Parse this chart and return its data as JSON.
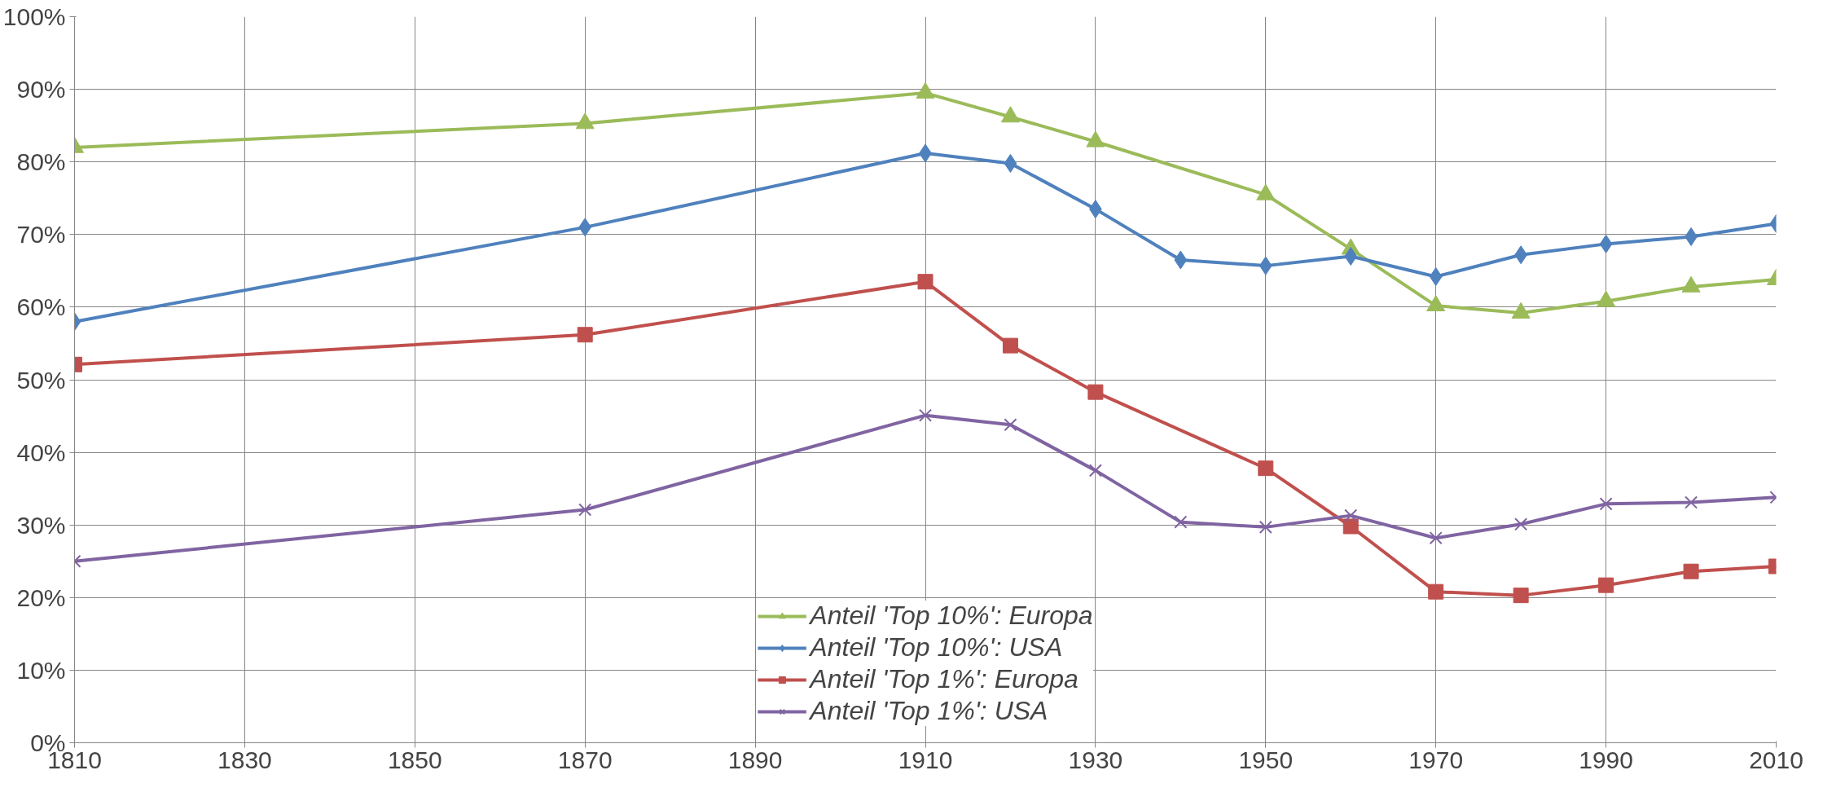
{
  "chart_data": {
    "type": "line",
    "grid": true,
    "legend": "bottom",
    "xlim": [
      1810,
      2010
    ],
    "xticks": [
      1810,
      1830,
      1850,
      1870,
      1890,
      1910,
      1930,
      1950,
      1970,
      1990,
      2010
    ],
    "ylim": [
      0,
      100
    ],
    "yticks": [
      {
        "value": 0,
        "label": "0%"
      },
      {
        "value": 10,
        "label": "10%"
      },
      {
        "value": 20,
        "label": "20%"
      },
      {
        "value": 30,
        "label": "30%"
      },
      {
        "value": 40,
        "label": "40%"
      },
      {
        "value": 50,
        "label": "50%"
      },
      {
        "value": 60,
        "label": "60%"
      },
      {
        "value": 70,
        "label": "70%"
      },
      {
        "value": 80,
        "label": "80%"
      },
      {
        "value": 90,
        "label": "90%"
      },
      {
        "value": 100,
        "label": "100%"
      }
    ],
    "series": [
      {
        "name": "Anteil 'Top 10%': Europa",
        "color": "#9bbb59",
        "marker": "triangle",
        "x": [
          1810,
          1870,
          1910,
          1920,
          1930,
          1950,
          1960,
          1970,
          1980,
          1990,
          2000,
          2010
        ],
        "values": [
          82,
          85.3,
          89.5,
          86.2,
          82.8,
          75.5,
          68,
          60.2,
          59.2,
          60.8,
          62.8,
          63.8
        ]
      },
      {
        "name": "Anteil 'Top 10%': USA",
        "color": "#4f81bd",
        "marker": "diamond",
        "x": [
          1810,
          1870,
          1910,
          1920,
          1930,
          1940,
          1950,
          1960,
          1970,
          1980,
          1990,
          2000,
          2010
        ],
        "values": [
          58,
          71,
          81.2,
          79.8,
          73.5,
          66.5,
          65.7,
          67,
          64.2,
          67.2,
          68.7,
          69.7,
          71.5
        ]
      },
      {
        "name": "Anteil 'Top 1%': Europa",
        "color": "#c0504d",
        "marker": "square",
        "x": [
          1810,
          1870,
          1910,
          1920,
          1930,
          1950,
          1960,
          1970,
          1980,
          1990,
          2000,
          2010
        ],
        "values": [
          52.1,
          56.2,
          63.5,
          54.7,
          48.3,
          37.8,
          29.8,
          20.8,
          20.3,
          21.7,
          23.6,
          24.3
        ]
      },
      {
        "name": "Anteil 'Top 1%': USA",
        "color": "#8064a2",
        "marker": "cross",
        "x": [
          1810,
          1870,
          1910,
          1920,
          1930,
          1940,
          1950,
          1960,
          1970,
          1980,
          1990,
          2000,
          2010
        ],
        "values": [
          25,
          32.1,
          45.1,
          43.8,
          37.5,
          30.4,
          29.7,
          31.3,
          28.2,
          30.1,
          32.9,
          33.1,
          33.8
        ]
      }
    ]
  }
}
